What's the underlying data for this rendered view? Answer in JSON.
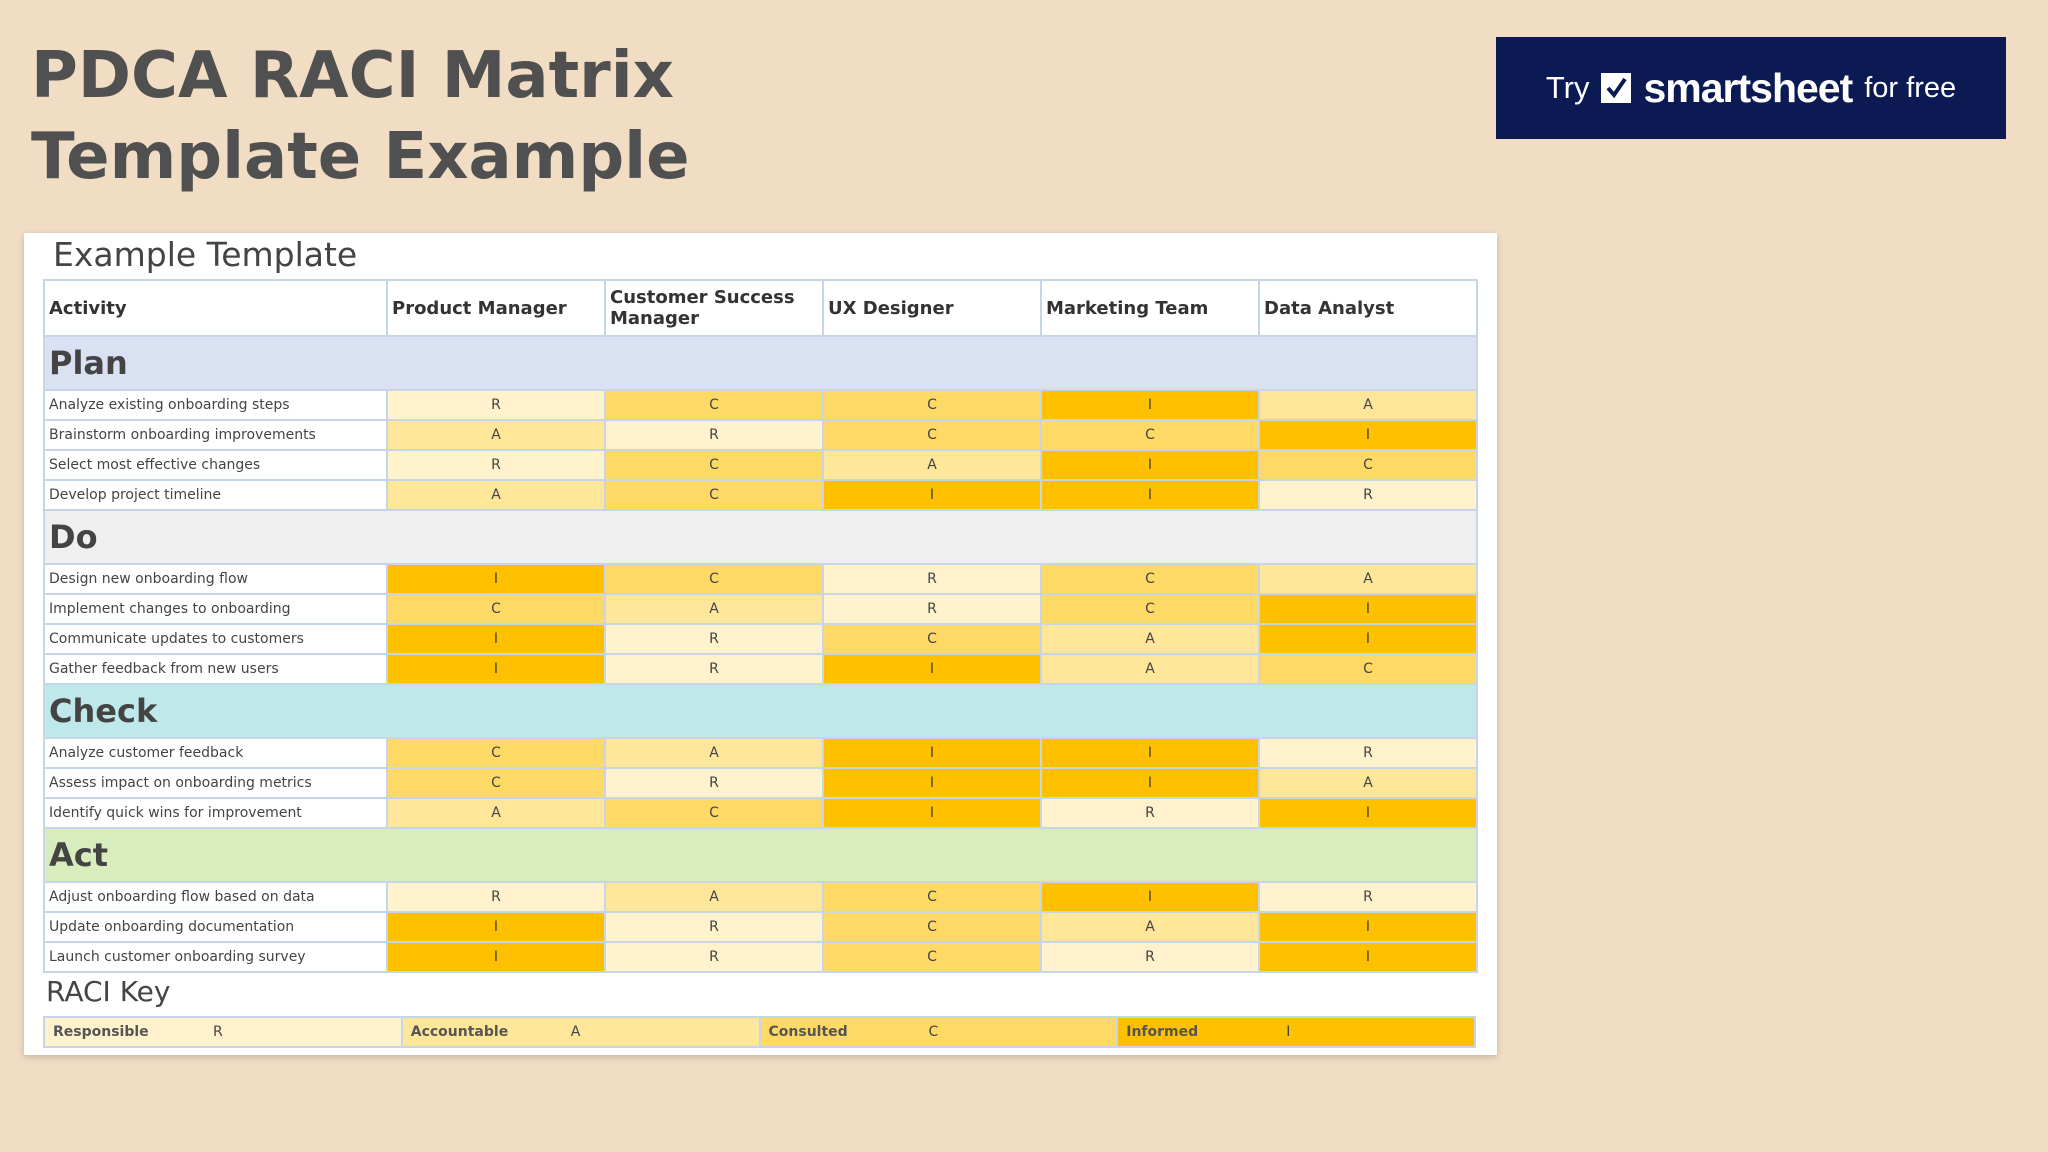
{
  "title": {
    "line1": "PDCA RACI Matrix",
    "line2": "Template Example"
  },
  "cta": {
    "try": "Try",
    "brand": "smartsheet",
    "free": "for free",
    "icon": "check-icon"
  },
  "sheet": {
    "title": "Example Template",
    "columns": [
      "Activity",
      "Product Manager",
      "Customer Success Manager",
      "UX Designer",
      "Marketing Team",
      "Data Analyst"
    ],
    "phases": [
      {
        "name": "Plan",
        "rows": [
          {
            "activity": "Analyze existing onboarding steps",
            "values": [
              "R",
              "C",
              "C",
              "I",
              "A"
            ]
          },
          {
            "activity": "Brainstorm onboarding improvements",
            "values": [
              "A",
              "R",
              "C",
              "C",
              "I"
            ]
          },
          {
            "activity": "Select most effective changes",
            "values": [
              "R",
              "C",
              "A",
              "I",
              "C"
            ]
          },
          {
            "activity": "Develop project timeline",
            "values": [
              "A",
              "C",
              "I",
              "I",
              "R"
            ]
          }
        ]
      },
      {
        "name": "Do",
        "rows": [
          {
            "activity": "Design new onboarding flow",
            "values": [
              "I",
              "C",
              "R",
              "C",
              "A"
            ]
          },
          {
            "activity": "Implement changes to onboarding",
            "values": [
              "C",
              "A",
              "R",
              "C",
              "I"
            ]
          },
          {
            "activity": "Communicate updates to customers",
            "values": [
              "I",
              "R",
              "C",
              "A",
              "I"
            ]
          },
          {
            "activity": "Gather feedback from new users",
            "values": [
              "I",
              "R",
              "I",
              "A",
              "C"
            ]
          }
        ]
      },
      {
        "name": "Check",
        "rows": [
          {
            "activity": "Analyze customer feedback",
            "values": [
              "C",
              "A",
              "I",
              "I",
              "R"
            ]
          },
          {
            "activity": "Assess impact on onboarding metrics",
            "values": [
              "C",
              "R",
              "I",
              "I",
              "A"
            ]
          },
          {
            "activity": "Identify quick wins for improvement",
            "values": [
              "A",
              "C",
              "I",
              "R",
              "I"
            ]
          }
        ]
      },
      {
        "name": "Act",
        "rows": [
          {
            "activity": "Adjust onboarding flow based on data",
            "values": [
              "R",
              "A",
              "C",
              "I",
              "R"
            ]
          },
          {
            "activity": "Update onboarding documentation",
            "values": [
              "I",
              "R",
              "C",
              "A",
              "I"
            ]
          },
          {
            "activity": "Launch customer onboarding survey",
            "values": [
              "I",
              "R",
              "C",
              "R",
              "I"
            ]
          }
        ]
      }
    ],
    "key": {
      "title": "RACI Key",
      "items": [
        {
          "label": "Responsible",
          "code": "R"
        },
        {
          "label": "Accountable",
          "code": "A"
        },
        {
          "label": "Consulted",
          "code": "C"
        },
        {
          "label": "Informed",
          "code": "I"
        }
      ]
    }
  },
  "colors": {
    "R": "#fff2cc",
    "A": "#ffe699",
    "C": "#ffd966",
    "I": "#ffc000",
    "cta_bg": "#0b1a52",
    "page_bg": "#f1dcc4"
  }
}
